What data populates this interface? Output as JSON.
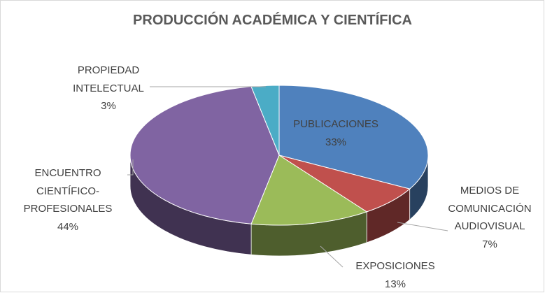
{
  "chart_data": {
    "type": "pie3d",
    "title": "PRODUCCIÓN ACADÉMICA Y CIENTÍFICA",
    "categories": [
      "PUBLICACIONES",
      "MEDIOS DE COMUNICACIÓN AUDIOVISUAL",
      "EXPOSICIONES",
      "ENCUENTRO CIENTÍFICO-PROFESIONALES",
      "PROPIEDAD INTELECTUAL"
    ],
    "values": [
      33,
      7,
      13,
      44,
      3
    ],
    "value_labels": [
      "33%",
      "7%",
      "13%",
      "44%",
      "3%"
    ],
    "colors": [
      "#4f81bd",
      "#c0504d",
      "#9bbb59",
      "#8064a2",
      "#4bacc6"
    ]
  }
}
